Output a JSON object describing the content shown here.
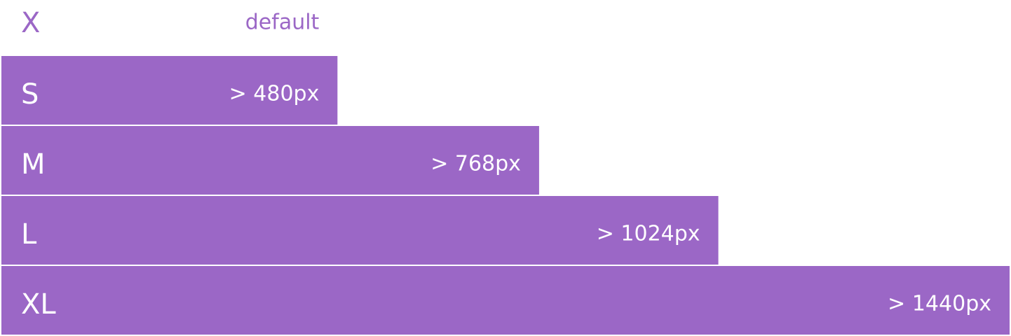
{
  "chart_data": {
    "type": "bar",
    "orientation": "horizontal",
    "categories": [
      "X",
      "S",
      "M",
      "L",
      "XL"
    ],
    "values": [
      null,
      480,
      768,
      1024,
      1440
    ],
    "value_labels": [
      "default",
      "> 480px",
      "> 768px",
      "> 1024px",
      "> 1440px"
    ],
    "color": "#9b67c6",
    "xlim": [
      0,
      1440
    ]
  }
}
